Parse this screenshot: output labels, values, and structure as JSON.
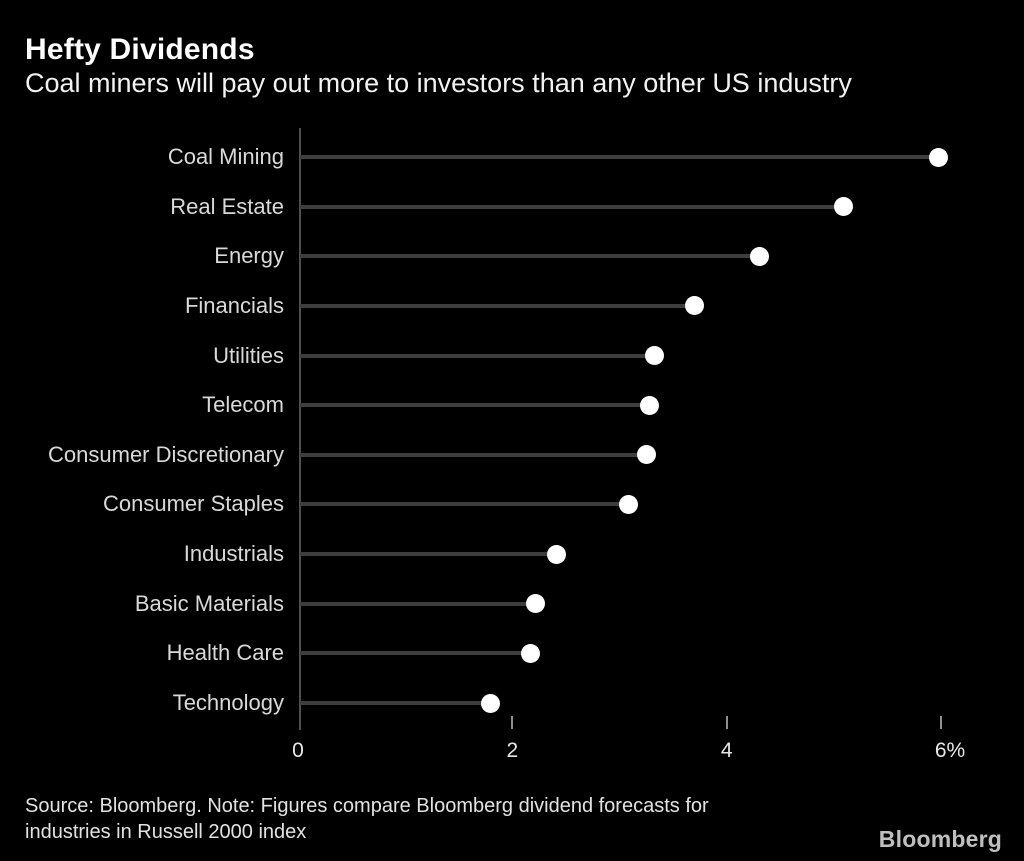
{
  "header": {
    "title": "Hefty Dividends",
    "subtitle": "Coal miners will pay out more to investors than any other US industry"
  },
  "chart_data": {
    "type": "bar",
    "variant": "horizontal-lollipop",
    "title": "Hefty Dividends",
    "subtitle": "Coal miners will pay out more to investors than any other US industry",
    "categories": [
      "Coal Mining",
      "Real Estate",
      "Energy",
      "Financials",
      "Utilities",
      "Telecom",
      "Consumer Discretionary",
      "Consumer Staples",
      "Industrials",
      "Basic Materials",
      "Health Care",
      "Technology"
    ],
    "values": [
      5.98,
      5.09,
      4.31,
      3.7,
      3.33,
      3.28,
      3.25,
      3.08,
      2.41,
      2.22,
      2.17,
      1.8
    ],
    "unit": "%",
    "xlabel": "",
    "ylabel": "",
    "xlim": [
      0,
      6.35
    ],
    "xticks": [
      0,
      2,
      4,
      6
    ],
    "xtick_labels": [
      "0",
      "2",
      "4",
      "6%"
    ],
    "grid": false,
    "legend": false,
    "background": "dark"
  },
  "footer": {
    "source_lines": [
      "Source: Bloomberg. Note: Figures compare Bloomberg dividend forecasts for",
      "industries in Russell 2000 index"
    ],
    "logo_text": "Bloomberg"
  },
  "colors": {
    "background": "#000000",
    "title": "#ffffff",
    "subtitle": "#f2f2f2",
    "category_label": "#d9d9d9",
    "stem_line": "#3d3d3d",
    "axis_line": "#4f4f4f",
    "tick_mark": "#8f8f8f",
    "tick_label": "#e8e8e8",
    "dot": "#ffffff",
    "footer_text": "#e2e2e2",
    "logo": "#bfbfbf"
  }
}
